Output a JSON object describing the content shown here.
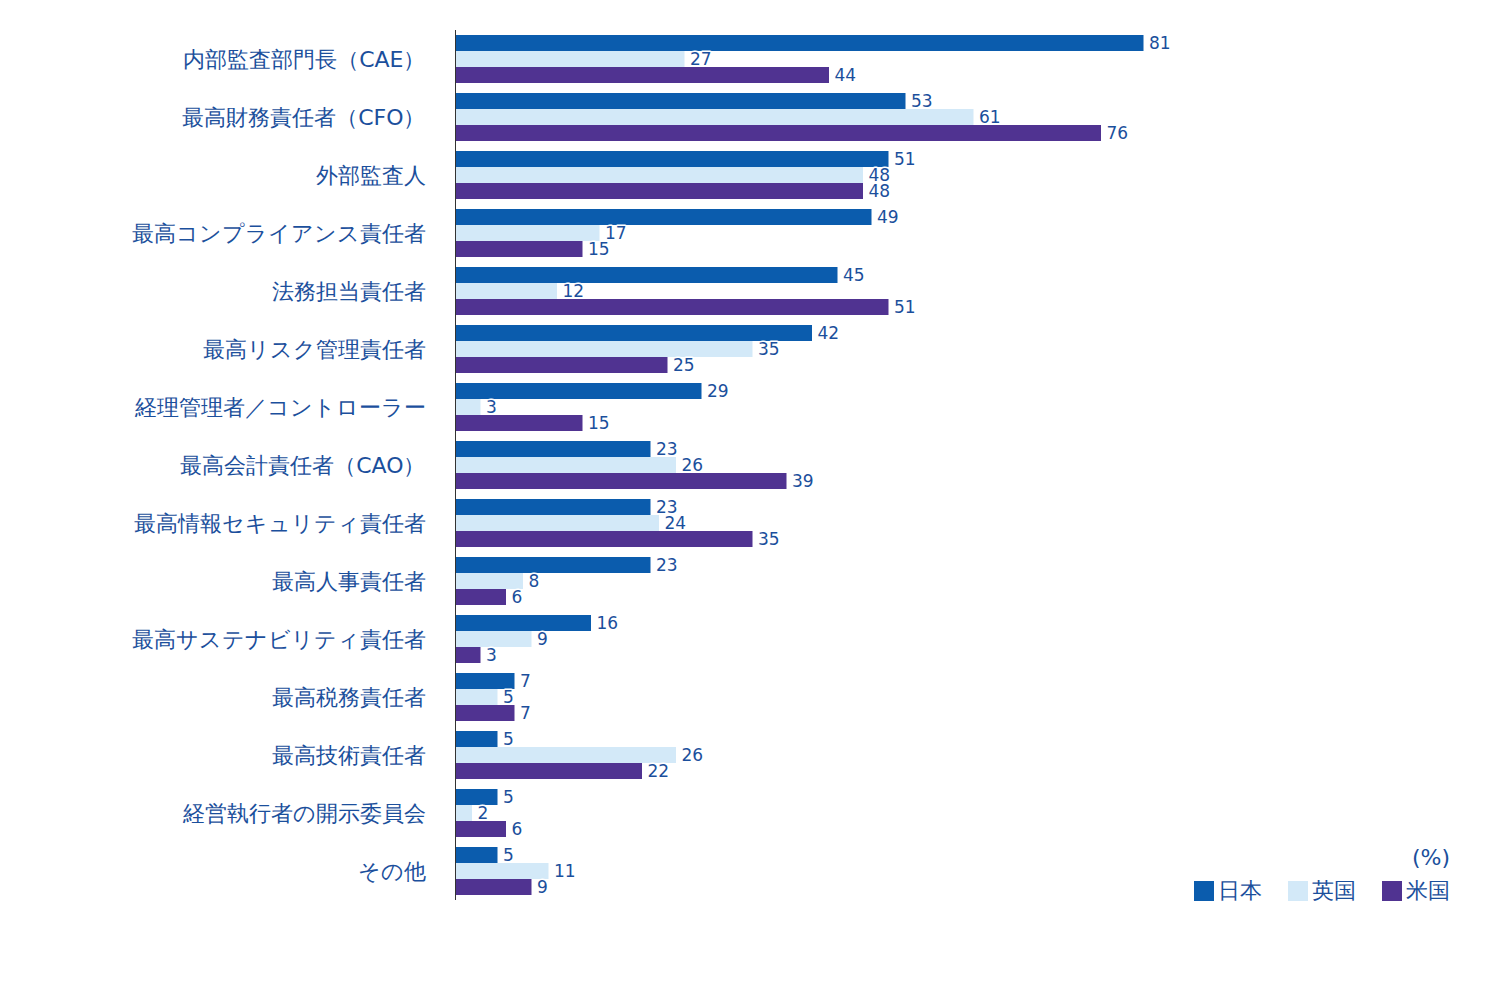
{
  "chart_data": {
    "type": "bar",
    "orientation": "horizontal",
    "xlabel": "(%)",
    "categories": [
      "内部監査部門長（CAE）",
      "最高財務責任者（CFO）",
      "外部監査人",
      "最高コンプライアンス責任者",
      "法務担当責任者",
      "最高リスク管理責任者",
      "経理管理者／コントローラー",
      "最高会計責任者（CAO）",
      "最高情報セキュリティ責任者",
      "最高人事責任者",
      "最高サステナビリティ責任者",
      "最高税務責任者",
      "最高技術責任者",
      "経営執行者の開示委員会",
      "その他"
    ],
    "series": [
      {
        "name": "日本",
        "color": "#0b5cad",
        "values": [
          81,
          53,
          51,
          49,
          45,
          42,
          29,
          23,
          23,
          23,
          16,
          7,
          5,
          5,
          5
        ]
      },
      {
        "name": "英国",
        "color": "#d3e9f8",
        "values": [
          27,
          61,
          48,
          17,
          12,
          35,
          3,
          26,
          24,
          8,
          9,
          5,
          26,
          2,
          11
        ]
      },
      {
        "name": "米国",
        "color": "#503391",
        "values": [
          44,
          76,
          48,
          15,
          51,
          25,
          15,
          39,
          35,
          6,
          3,
          7,
          22,
          6,
          9
        ]
      }
    ],
    "xlim": [
      0,
      100
    ],
    "grid": false,
    "data_labels": true,
    "tick_labels": "y",
    "legend": "bottom-right"
  }
}
